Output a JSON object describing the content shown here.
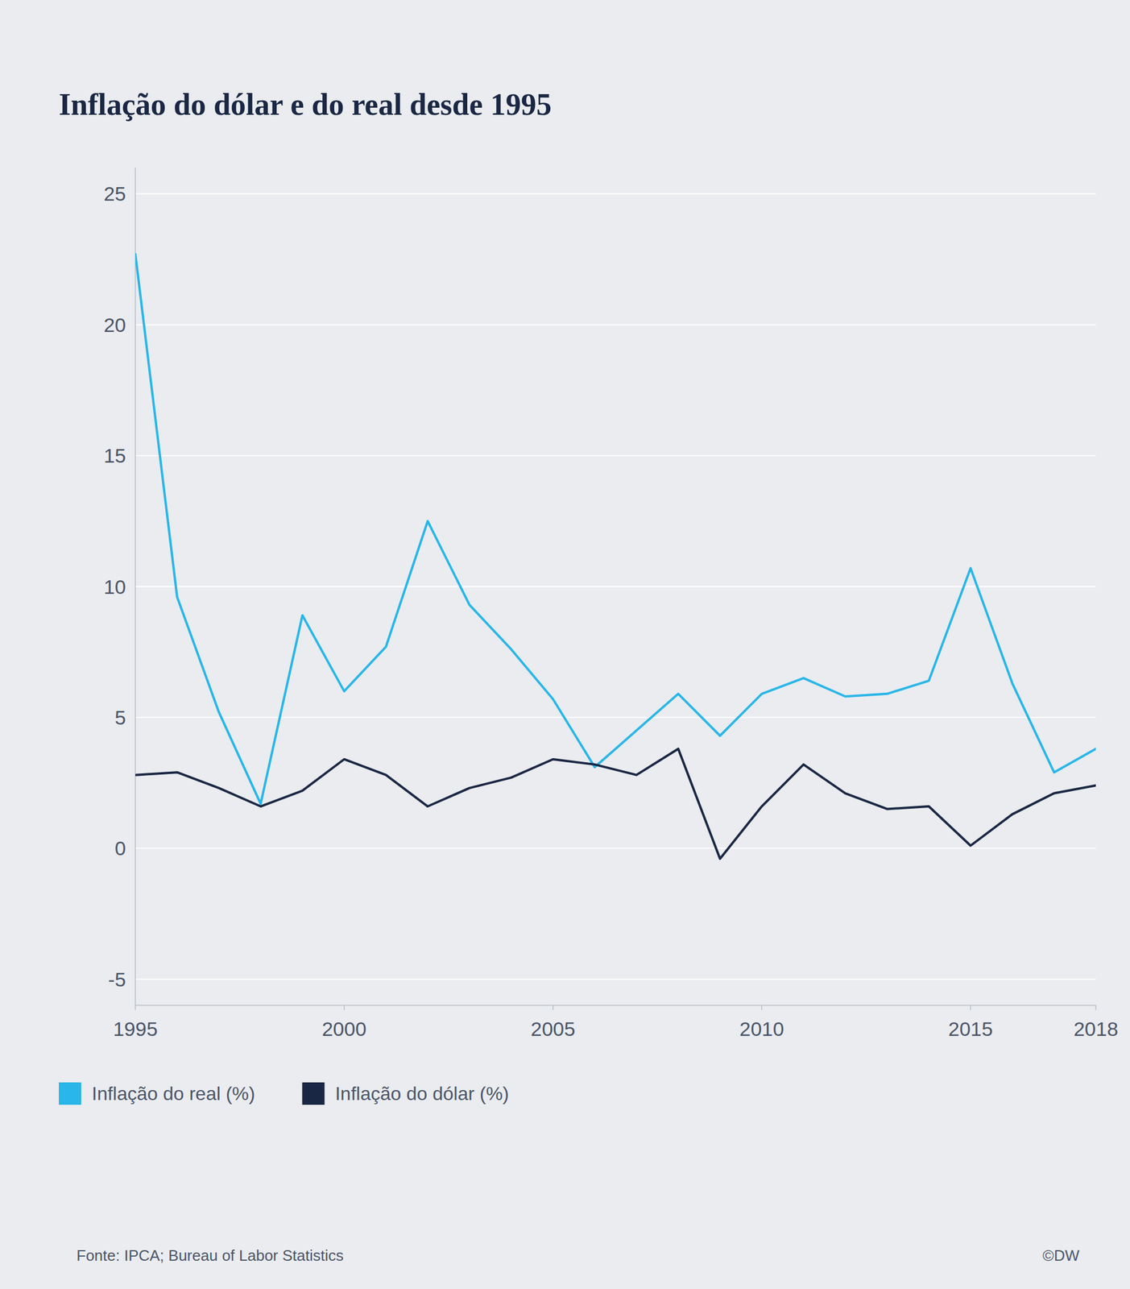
{
  "chart_data": {
    "type": "line",
    "title": "Inflação do dólar e do real desde 1995",
    "x": [
      1995,
      1996,
      1997,
      1998,
      1999,
      2000,
      2001,
      2002,
      2003,
      2004,
      2005,
      2006,
      2007,
      2008,
      2009,
      2010,
      2011,
      2012,
      2013,
      2014,
      2015,
      2016,
      2017,
      2018
    ],
    "series": [
      {
        "name": "Inflação do real (%)",
        "color": "#29b6e8",
        "values": [
          22.7,
          9.6,
          5.2,
          1.7,
          8.9,
          6.0,
          7.7,
          12.5,
          9.3,
          7.6,
          5.7,
          3.1,
          4.5,
          5.9,
          4.3,
          5.9,
          6.5,
          5.8,
          5.9,
          6.4,
          10.7,
          6.3,
          2.9,
          3.8
        ]
      },
      {
        "name": "Inflação do dólar (%)",
        "color": "#1a2744",
        "values": [
          2.8,
          2.9,
          2.3,
          1.6,
          2.2,
          3.4,
          2.8,
          1.6,
          2.3,
          2.7,
          3.4,
          3.2,
          2.8,
          3.8,
          -0.4,
          1.6,
          3.2,
          2.1,
          1.5,
          1.6,
          0.1,
          1.3,
          2.1,
          2.4
        ]
      }
    ],
    "xlim": [
      1995,
      2018
    ],
    "xticks": [
      1995,
      2000,
      2005,
      2010,
      2015,
      2018
    ],
    "ylim": [
      -6,
      26
    ],
    "yticks": [
      -5,
      0,
      5,
      10,
      15,
      20,
      25
    ],
    "grid": true,
    "legend": "bottom",
    "annotations": [
      "Fonte: IPCA; Bureau of Labor Statistics",
      "©DW"
    ]
  }
}
